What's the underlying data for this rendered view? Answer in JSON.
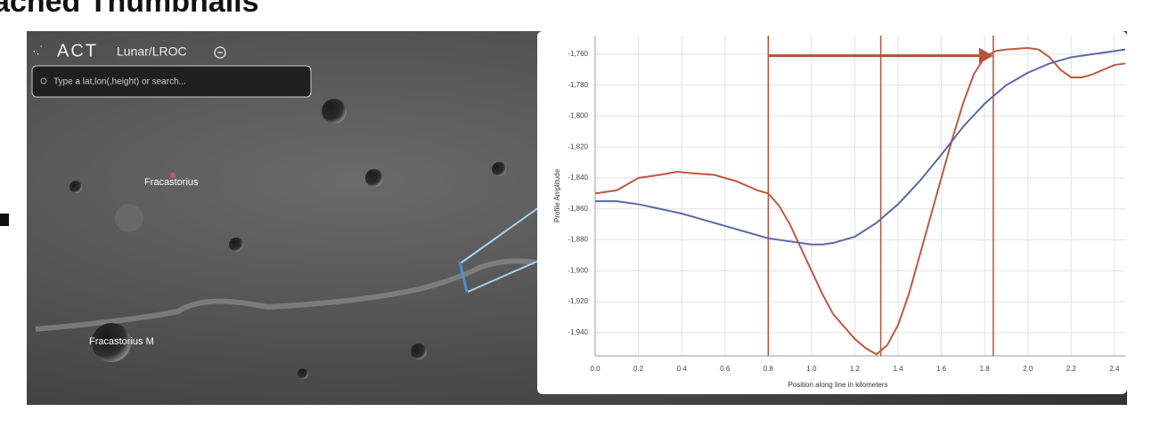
{
  "header": {
    "title": "ached Thumbnails"
  },
  "app": {
    "logo": "ACT",
    "layer": "Lunar/LROC",
    "search_placeholder": "Type a lat,lon(,height) or search..."
  },
  "map_labels": [
    "Fracastorius",
    "Fracastorius M"
  ],
  "chart_data": {
    "type": "line",
    "xlabel": "Position along line in kilometers",
    "ylabel": "Profile Amplitude",
    "xlim": [
      0,
      2.45
    ],
    "ylim": [
      -1955,
      -1748
    ],
    "xticks": [
      {
        "value": 0,
        "label": "0.0"
      },
      0.2,
      0.4,
      0.6,
      0.8,
      {
        "value": 1,
        "label": "1.0"
      },
      1.2,
      1.4,
      1.6,
      1.8,
      {
        "value": 2,
        "label": "2.0"
      },
      2.2,
      2.4
    ],
    "yticks": [
      {
        "value": -1760,
        "label": "-1,760"
      },
      {
        "value": -1780,
        "label": "-1,780"
      },
      {
        "value": -1800,
        "label": "-1,800"
      },
      {
        "value": -1820,
        "label": "-1,820"
      },
      {
        "value": -1840,
        "label": "-1,840"
      },
      {
        "value": -1860,
        "label": "-1,860"
      },
      {
        "value": -1880,
        "label": "-1,880"
      },
      {
        "value": -1900,
        "label": "-1,900"
      },
      {
        "value": -1920,
        "label": "-1,920"
      },
      {
        "value": -1940,
        "label": "-1,940"
      }
    ],
    "grid": true,
    "vlines": [
      0.8,
      1.32,
      1.84
    ],
    "vline_color": "#b5533a",
    "arrow": {
      "x": [
        0.8,
        1.84
      ],
      "y": -1761
    },
    "series": [
      {
        "color": "#c0583f",
        "x": [
          0,
          0.1,
          0.2,
          0.3,
          0.38,
          0.45,
          0.55,
          0.65,
          0.75,
          0.8,
          0.85,
          0.9,
          0.95,
          1.0,
          1.05,
          1.1,
          1.2,
          1.25,
          1.3,
          1.35,
          1.4,
          1.45,
          1.5,
          1.55,
          1.6,
          1.65,
          1.7,
          1.75,
          1.8,
          1.85,
          1.9,
          2.0,
          2.05,
          2.1,
          2.15,
          2.2,
          2.25,
          2.3,
          2.4,
          2.45
        ],
        "values": [
          -1850,
          -1848,
          -1840,
          -1838,
          -1836,
          -1837,
          -1838,
          -1842,
          -1848,
          -1850,
          -1858,
          -1870,
          -1885,
          -1900,
          -1915,
          -1928,
          -1944,
          -1950,
          -1954,
          -1948,
          -1935,
          -1915,
          -1890,
          -1865,
          -1840,
          -1815,
          -1792,
          -1773,
          -1762,
          -1758,
          -1757,
          -1756,
          -1757,
          -1762,
          -1770,
          -1775,
          -1775,
          -1773,
          -1767,
          -1766
        ]
      },
      {
        "color": "#5b68a6",
        "x": [
          0,
          0.1,
          0.2,
          0.3,
          0.4,
          0.5,
          0.6,
          0.7,
          0.8,
          0.9,
          1.0,
          1.05,
          1.1,
          1.2,
          1.3,
          1.4,
          1.5,
          1.6,
          1.7,
          1.8,
          1.9,
          2.0,
          2.1,
          2.2,
          2.3,
          2.45
        ],
        "values": [
          -1855,
          -1855,
          -1857,
          -1860,
          -1863,
          -1867,
          -1871,
          -1875,
          -1879,
          -1881,
          -1883,
          -1883,
          -1882,
          -1878,
          -1869,
          -1857,
          -1842,
          -1825,
          -1807,
          -1792,
          -1780,
          -1772,
          -1766,
          -1762,
          -1760,
          -1757
        ]
      }
    ]
  }
}
